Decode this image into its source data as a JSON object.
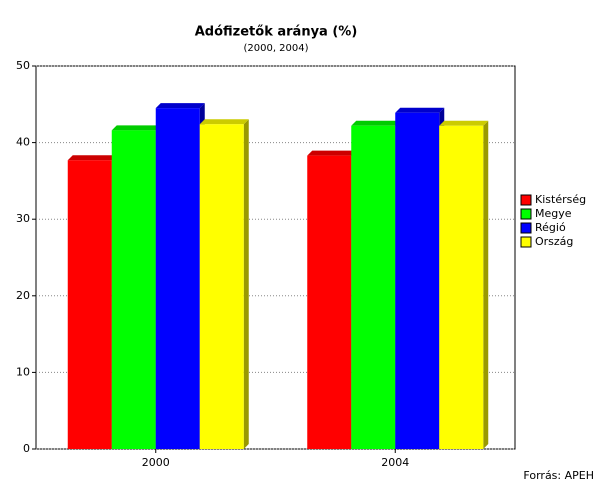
{
  "chart_data": {
    "type": "bar",
    "title": "Adófizetők aránya (%)",
    "subtitle": "(2000, 2004)",
    "source": "Forrás: APEH",
    "categories": [
      "2000",
      "2004"
    ],
    "series": [
      {
        "name": "Kistérség",
        "color": "#ff0000",
        "values": [
          37.7,
          38.3
        ]
      },
      {
        "name": "Megye",
        "color": "#00ff00",
        "values": [
          41.6,
          42.2
        ]
      },
      {
        "name": "Régió",
        "color": "#0000ff",
        "values": [
          44.5,
          43.9
        ]
      },
      {
        "name": "Ország",
        "color": "#ffff00",
        "values": [
          42.4,
          42.2
        ]
      }
    ],
    "ylim": [
      0,
      50
    ],
    "yticks": [
      0,
      10,
      20,
      30,
      40,
      50
    ],
    "grid": true,
    "legend": "right"
  }
}
